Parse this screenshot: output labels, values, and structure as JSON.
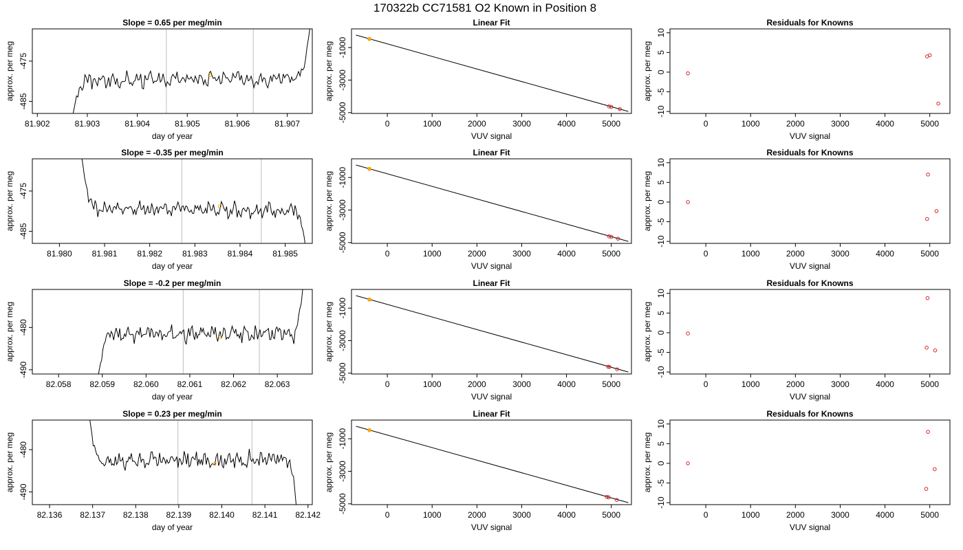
{
  "header": {
    "title": "170322b     CC71581   O2 Known in Position  8"
  },
  "colors": {
    "trace": "#000000",
    "marker_orange": "#ffa500",
    "marker_red": "#d62728",
    "vline": "#c8c8c8",
    "frame": "#000000"
  },
  "chart_data": [
    {
      "type": "line",
      "row": 1,
      "title": "Slope =  0.65  per meg/min",
      "xlabel": "day of year",
      "ylabel": "approx. per meg",
      "xlim": [
        81.9019,
        81.9075
      ],
      "ylim": [
        -488,
        -467
      ],
      "xticks": [
        "81.902",
        "81.903",
        "81.904",
        "81.905",
        "81.906",
        "81.907"
      ],
      "yticks": [
        "-485",
        "-475"
      ],
      "ytick_values": [
        -485,
        -475
      ],
      "vlines": [
        81.90458,
        81.90632
      ],
      "trace": {
        "x_start": 81.9027,
        "x_end": 81.90745,
        "base": -479.5,
        "amp": 1.5,
        "start_level": -489,
        "end_level": -467,
        "drift": 1.0,
        "seed": 3
      },
      "marker": {
        "x": 81.90545,
        "y": -478.5
      }
    },
    {
      "type": "scatter",
      "row": 1,
      "title": "Linear Fit",
      "xlabel": "VUV signal",
      "ylabel": "approx. per meg",
      "xlim": [
        -800,
        5450
      ],
      "ylim": [
        -5050,
        150
      ],
      "xticks": [
        "0",
        "1000",
        "2000",
        "3000",
        "4000",
        "5000"
      ],
      "xtick_values": [
        0,
        1000,
        2000,
        3000,
        4000,
        5000
      ],
      "yticks": [
        "-5000",
        "-3000",
        "-1000"
      ],
      "ytick_values": [
        -5000,
        -3000,
        -1000
      ],
      "fit_line": {
        "x": [
          -700,
          5380
        ],
        "y": [
          -230,
          -4930
        ]
      },
      "points_red": [
        [
          -400,
          -470
        ],
        [
          4950,
          -4620
        ],
        [
          5000,
          -4650
        ],
        [
          5190,
          -4780
        ]
      ],
      "point_orange": [
        -400,
        -470
      ]
    },
    {
      "type": "scatter",
      "row": 1,
      "title": "Residuals for Knowns",
      "xlabel": "VUV signal",
      "ylabel": "approx. per meg",
      "xlim": [
        -800,
        5450
      ],
      "ylim": [
        -10.5,
        11
      ],
      "xticks": [
        "0",
        "1000",
        "2000",
        "3000",
        "4000",
        "5000"
      ],
      "xtick_values": [
        0,
        1000,
        2000,
        3000,
        4000,
        5000
      ],
      "yticks": [
        "-10",
        "-5",
        "0",
        "5",
        "10"
      ],
      "ytick_values": [
        -10,
        -5,
        0,
        5,
        10
      ],
      "points": [
        [
          -400,
          -0.3
        ],
        [
          4940,
          4.0
        ],
        [
          5000,
          4.3
        ],
        [
          5190,
          -8.0
        ]
      ]
    },
    {
      "type": "line",
      "row": 2,
      "title": "Slope =  -0.35  per meg/min",
      "xlabel": "day of year",
      "ylabel": "approx. per meg",
      "xlim": [
        81.9794,
        81.9856
      ],
      "ylim": [
        -488,
        -467
      ],
      "xticks": [
        "81.980",
        "81.981",
        "81.982",
        "81.983",
        "81.984",
        "81.985"
      ],
      "yticks": [
        "-485",
        "-475"
      ],
      "ytick_values": [
        -485,
        -475
      ],
      "vlines": [
        81.98271,
        81.98447
      ],
      "trace": {
        "x_start": 81.9805,
        "x_end": 81.98545,
        "base": -479.5,
        "amp": 1.5,
        "start_level": -467,
        "end_level": -489,
        "drift": -0.6,
        "seed": 7
      },
      "marker": {
        "x": 81.98355,
        "y": -478.8
      }
    },
    {
      "type": "scatter",
      "row": 2,
      "title": "Linear Fit",
      "xlabel": "VUV signal",
      "ylabel": "approx. per meg",
      "xlim": [
        -800,
        5450
      ],
      "ylim": [
        -5050,
        150
      ],
      "xticks": [
        "0",
        "1000",
        "2000",
        "3000",
        "4000",
        "5000"
      ],
      "xtick_values": [
        0,
        1000,
        2000,
        3000,
        4000,
        5000
      ],
      "yticks": [
        "-5000",
        "-3000",
        "-1000"
      ],
      "ytick_values": [
        -5000,
        -3000,
        -1000
      ],
      "fit_line": {
        "x": [
          -700,
          5380
        ],
        "y": [
          -230,
          -4930
        ]
      },
      "points_red": [
        [
          -400,
          -470
        ],
        [
          4950,
          -4620
        ],
        [
          5000,
          -4650
        ],
        [
          5150,
          -4760
        ]
      ],
      "point_orange": [
        -400,
        -470
      ]
    },
    {
      "type": "scatter",
      "row": 2,
      "title": "Residuals for Knowns",
      "xlabel": "VUV signal",
      "ylabel": "approx. per meg",
      "xlim": [
        -800,
        5450
      ],
      "ylim": [
        -10.5,
        11
      ],
      "xticks": [
        "0",
        "1000",
        "2000",
        "3000",
        "4000",
        "5000"
      ],
      "xtick_values": [
        0,
        1000,
        2000,
        3000,
        4000,
        5000
      ],
      "yticks": [
        "-10",
        "-5",
        "0",
        "5",
        "10"
      ],
      "ytick_values": [
        -10,
        -5,
        0,
        5,
        10
      ],
      "points": [
        [
          -400,
          0.0
        ],
        [
          4960,
          7.0
        ],
        [
          4940,
          -4.3
        ],
        [
          5150,
          -2.3
        ]
      ]
    },
    {
      "type": "line",
      "row": 3,
      "title": "Slope =  -0.2  per meg/min",
      "xlabel": "day of year",
      "ylabel": "approx. per meg",
      "xlim": [
        82.0574,
        82.0638
      ],
      "ylim": [
        -491,
        -471
      ],
      "xticks": [
        "82.058",
        "82.059",
        "82.060",
        "82.061",
        "82.062",
        "82.063"
      ],
      "yticks": [
        "-490",
        "-480"
      ],
      "ytick_values": [
        -490,
        -480
      ],
      "vlines": [
        82.06085,
        82.06259
      ],
      "trace": {
        "x_start": 82.0589,
        "x_end": 82.0636,
        "base": -481.5,
        "amp": 1.5,
        "start_level": -492,
        "end_level": -469,
        "drift": 0.2,
        "seed": 11
      },
      "marker": {
        "x": 82.0617,
        "y": -482.3
      }
    },
    {
      "type": "scatter",
      "row": 3,
      "title": "Linear Fit",
      "xlabel": "VUV signal",
      "ylabel": "approx. per meg",
      "xlim": [
        -800,
        5450
      ],
      "ylim": [
        -5050,
        150
      ],
      "xticks": [
        "0",
        "1000",
        "2000",
        "3000",
        "4000",
        "5000"
      ],
      "xtick_values": [
        0,
        1000,
        2000,
        3000,
        4000,
        5000
      ],
      "yticks": [
        "-5000",
        "-3000",
        "-1000"
      ],
      "ytick_values": [
        -5000,
        -3000,
        -1000
      ],
      "fit_line": {
        "x": [
          -700,
          5380
        ],
        "y": [
          -230,
          -4930
        ]
      },
      "points_red": [
        [
          -400,
          -470
        ],
        [
          4930,
          -4600
        ],
        [
          4960,
          -4620
        ],
        [
          5130,
          -4760
        ]
      ],
      "point_orange": [
        -400,
        -470
      ]
    },
    {
      "type": "scatter",
      "row": 3,
      "title": "Residuals for Knowns",
      "xlabel": "VUV signal",
      "ylabel": "approx. per meg",
      "xlim": [
        -800,
        5450
      ],
      "ylim": [
        -10.5,
        11
      ],
      "xticks": [
        "0",
        "1000",
        "2000",
        "3000",
        "4000",
        "5000"
      ],
      "xtick_values": [
        0,
        1000,
        2000,
        3000,
        4000,
        5000
      ],
      "yticks": [
        "-10",
        "-5",
        "0",
        "5",
        "10"
      ],
      "ytick_values": [
        -10,
        -5,
        0,
        5,
        10
      ],
      "points": [
        [
          -400,
          -0.2
        ],
        [
          4950,
          8.8
        ],
        [
          4930,
          -3.8
        ],
        [
          5120,
          -4.5
        ]
      ]
    },
    {
      "type": "line",
      "row": 4,
      "title": "Slope =  0.23  per meg/min",
      "xlabel": "day of year",
      "ylabel": "approx. per meg",
      "xlim": [
        82.1356,
        82.1421
      ],
      "ylim": [
        -493,
        -473
      ],
      "xticks": [
        "82.136",
        "82.137",
        "82.138",
        "82.139",
        "82.140",
        "82.141",
        "82.142"
      ],
      "yticks": [
        "-490",
        "-480"
      ],
      "ytick_values": [
        -490,
        -480
      ],
      "vlines": [
        82.13898,
        82.1407
      ],
      "trace": {
        "x_start": 82.1369,
        "x_end": 82.14175,
        "base": -482.5,
        "amp": 1.5,
        "start_level": -470,
        "end_level": -495,
        "drift": 0.3,
        "seed": 17
      },
      "marker": {
        "x": 82.13983,
        "y": -483.3
      }
    },
    {
      "type": "scatter",
      "row": 4,
      "title": "Linear Fit",
      "xlabel": "VUV signal",
      "ylabel": "approx. per meg",
      "xlim": [
        -800,
        5450
      ],
      "ylim": [
        -5050,
        150
      ],
      "xticks": [
        "0",
        "1000",
        "2000",
        "3000",
        "4000",
        "5000"
      ],
      "xtick_values": [
        0,
        1000,
        2000,
        3000,
        4000,
        5000
      ],
      "yticks": [
        "-5000",
        "-3000",
        "-1000"
      ],
      "ytick_values": [
        -5000,
        -3000,
        -1000
      ],
      "fit_line": {
        "x": [
          -700,
          5380
        ],
        "y": [
          -230,
          -4930
        ]
      },
      "points_red": [
        [
          -400,
          -470
        ],
        [
          4900,
          -4570
        ],
        [
          4940,
          -4600
        ],
        [
          5120,
          -4760
        ]
      ],
      "point_orange": [
        -400,
        -470
      ]
    },
    {
      "type": "scatter",
      "row": 4,
      "title": "Residuals for Knowns",
      "xlabel": "VUV signal",
      "ylabel": "approx. per meg",
      "xlim": [
        -800,
        5450
      ],
      "ylim": [
        -10.5,
        11
      ],
      "xticks": [
        "0",
        "1000",
        "2000",
        "3000",
        "4000",
        "5000"
      ],
      "xtick_values": [
        0,
        1000,
        2000,
        3000,
        4000,
        5000
      ],
      "yticks": [
        "-10",
        "-5",
        "0",
        "5",
        "10"
      ],
      "ytick_values": [
        -10,
        -5,
        0,
        5,
        10
      ],
      "points": [
        [
          -400,
          0.0
        ],
        [
          4960,
          8.0
        ],
        [
          4920,
          -6.5
        ],
        [
          5110,
          -1.5
        ]
      ]
    }
  ]
}
